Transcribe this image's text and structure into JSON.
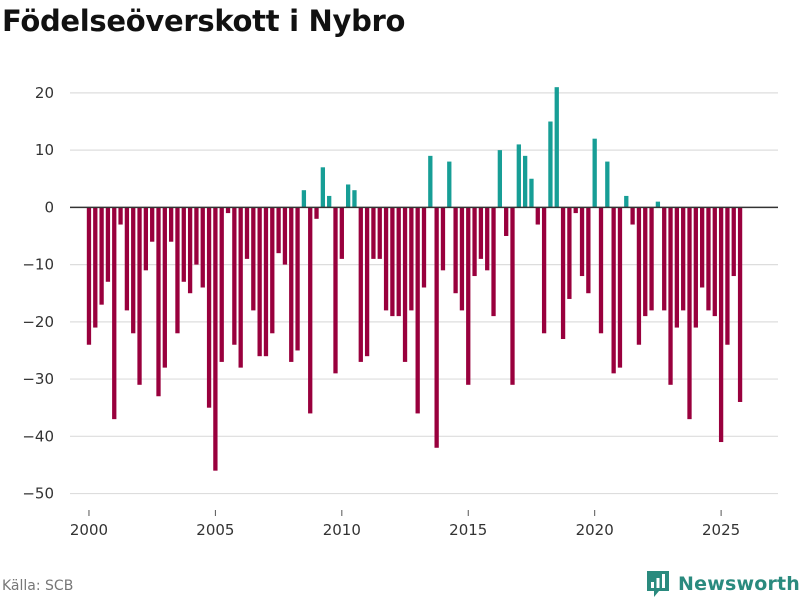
{
  "title": "Födelseöverskott i Nybro",
  "source": "Källa: SCB",
  "brand": {
    "name": "Newsworthy",
    "icon": "newsworthy-logo-icon"
  },
  "colors": {
    "positive": "#179e96",
    "negative": "#99003d",
    "brand": "#2a8a7e"
  },
  "chart_data": {
    "type": "bar",
    "title": "Födelseöverskott i Nybro",
    "xlabel": "",
    "ylabel": "",
    "xlim": [
      1999.25,
      2027.25
    ],
    "ylim": [
      -52,
      24
    ],
    "grid": true,
    "x_ticks": [
      2000,
      2005,
      2010,
      2015,
      2020,
      2025
    ],
    "x_tick_labels": [
      "2000",
      "2005",
      "2010",
      "2015",
      "2020",
      "2025"
    ],
    "y_ticks": [
      20,
      10,
      0,
      -10,
      -20,
      -30,
      -40,
      -50
    ],
    "y_tick_labels": [
      "20",
      "10",
      "0",
      "−10",
      "−20",
      "−30",
      "−40",
      "−50"
    ],
    "start": 2000,
    "step": 0.25,
    "unit": "kvartal",
    "values": [
      -24,
      -21,
      -17,
      -13,
      -37,
      -3,
      -18,
      -22,
      -31,
      -11,
      -6,
      -33,
      -28,
      -6,
      -22,
      -13,
      -15,
      -10,
      -14,
      -35,
      -46,
      -27,
      -1,
      -24,
      -28,
      -9,
      -18,
      -26,
      -26,
      -22,
      -8,
      -10,
      -27,
      -25,
      3,
      -36,
      -2,
      7,
      2,
      -29,
      -9,
      4,
      3,
      -27,
      -26,
      -9,
      -9,
      -18,
      -19,
      -19,
      -27,
      -18,
      -36,
      -14,
      9,
      -42,
      -11,
      8,
      -15,
      -18,
      -31,
      -12,
      -9,
      -11,
      -19,
      10,
      -5,
      -31,
      11,
      9,
      5,
      -3,
      -22,
      15,
      21,
      -23,
      -16,
      -1,
      -12,
      -15,
      12,
      -22,
      8,
      -29,
      -28,
      2,
      -3,
      -24,
      -19,
      -18,
      1,
      -18,
      -31,
      -21,
      -18,
      -37,
      -21,
      -14,
      -18,
      -19,
      -41,
      -24,
      -12,
      -34
    ]
  }
}
